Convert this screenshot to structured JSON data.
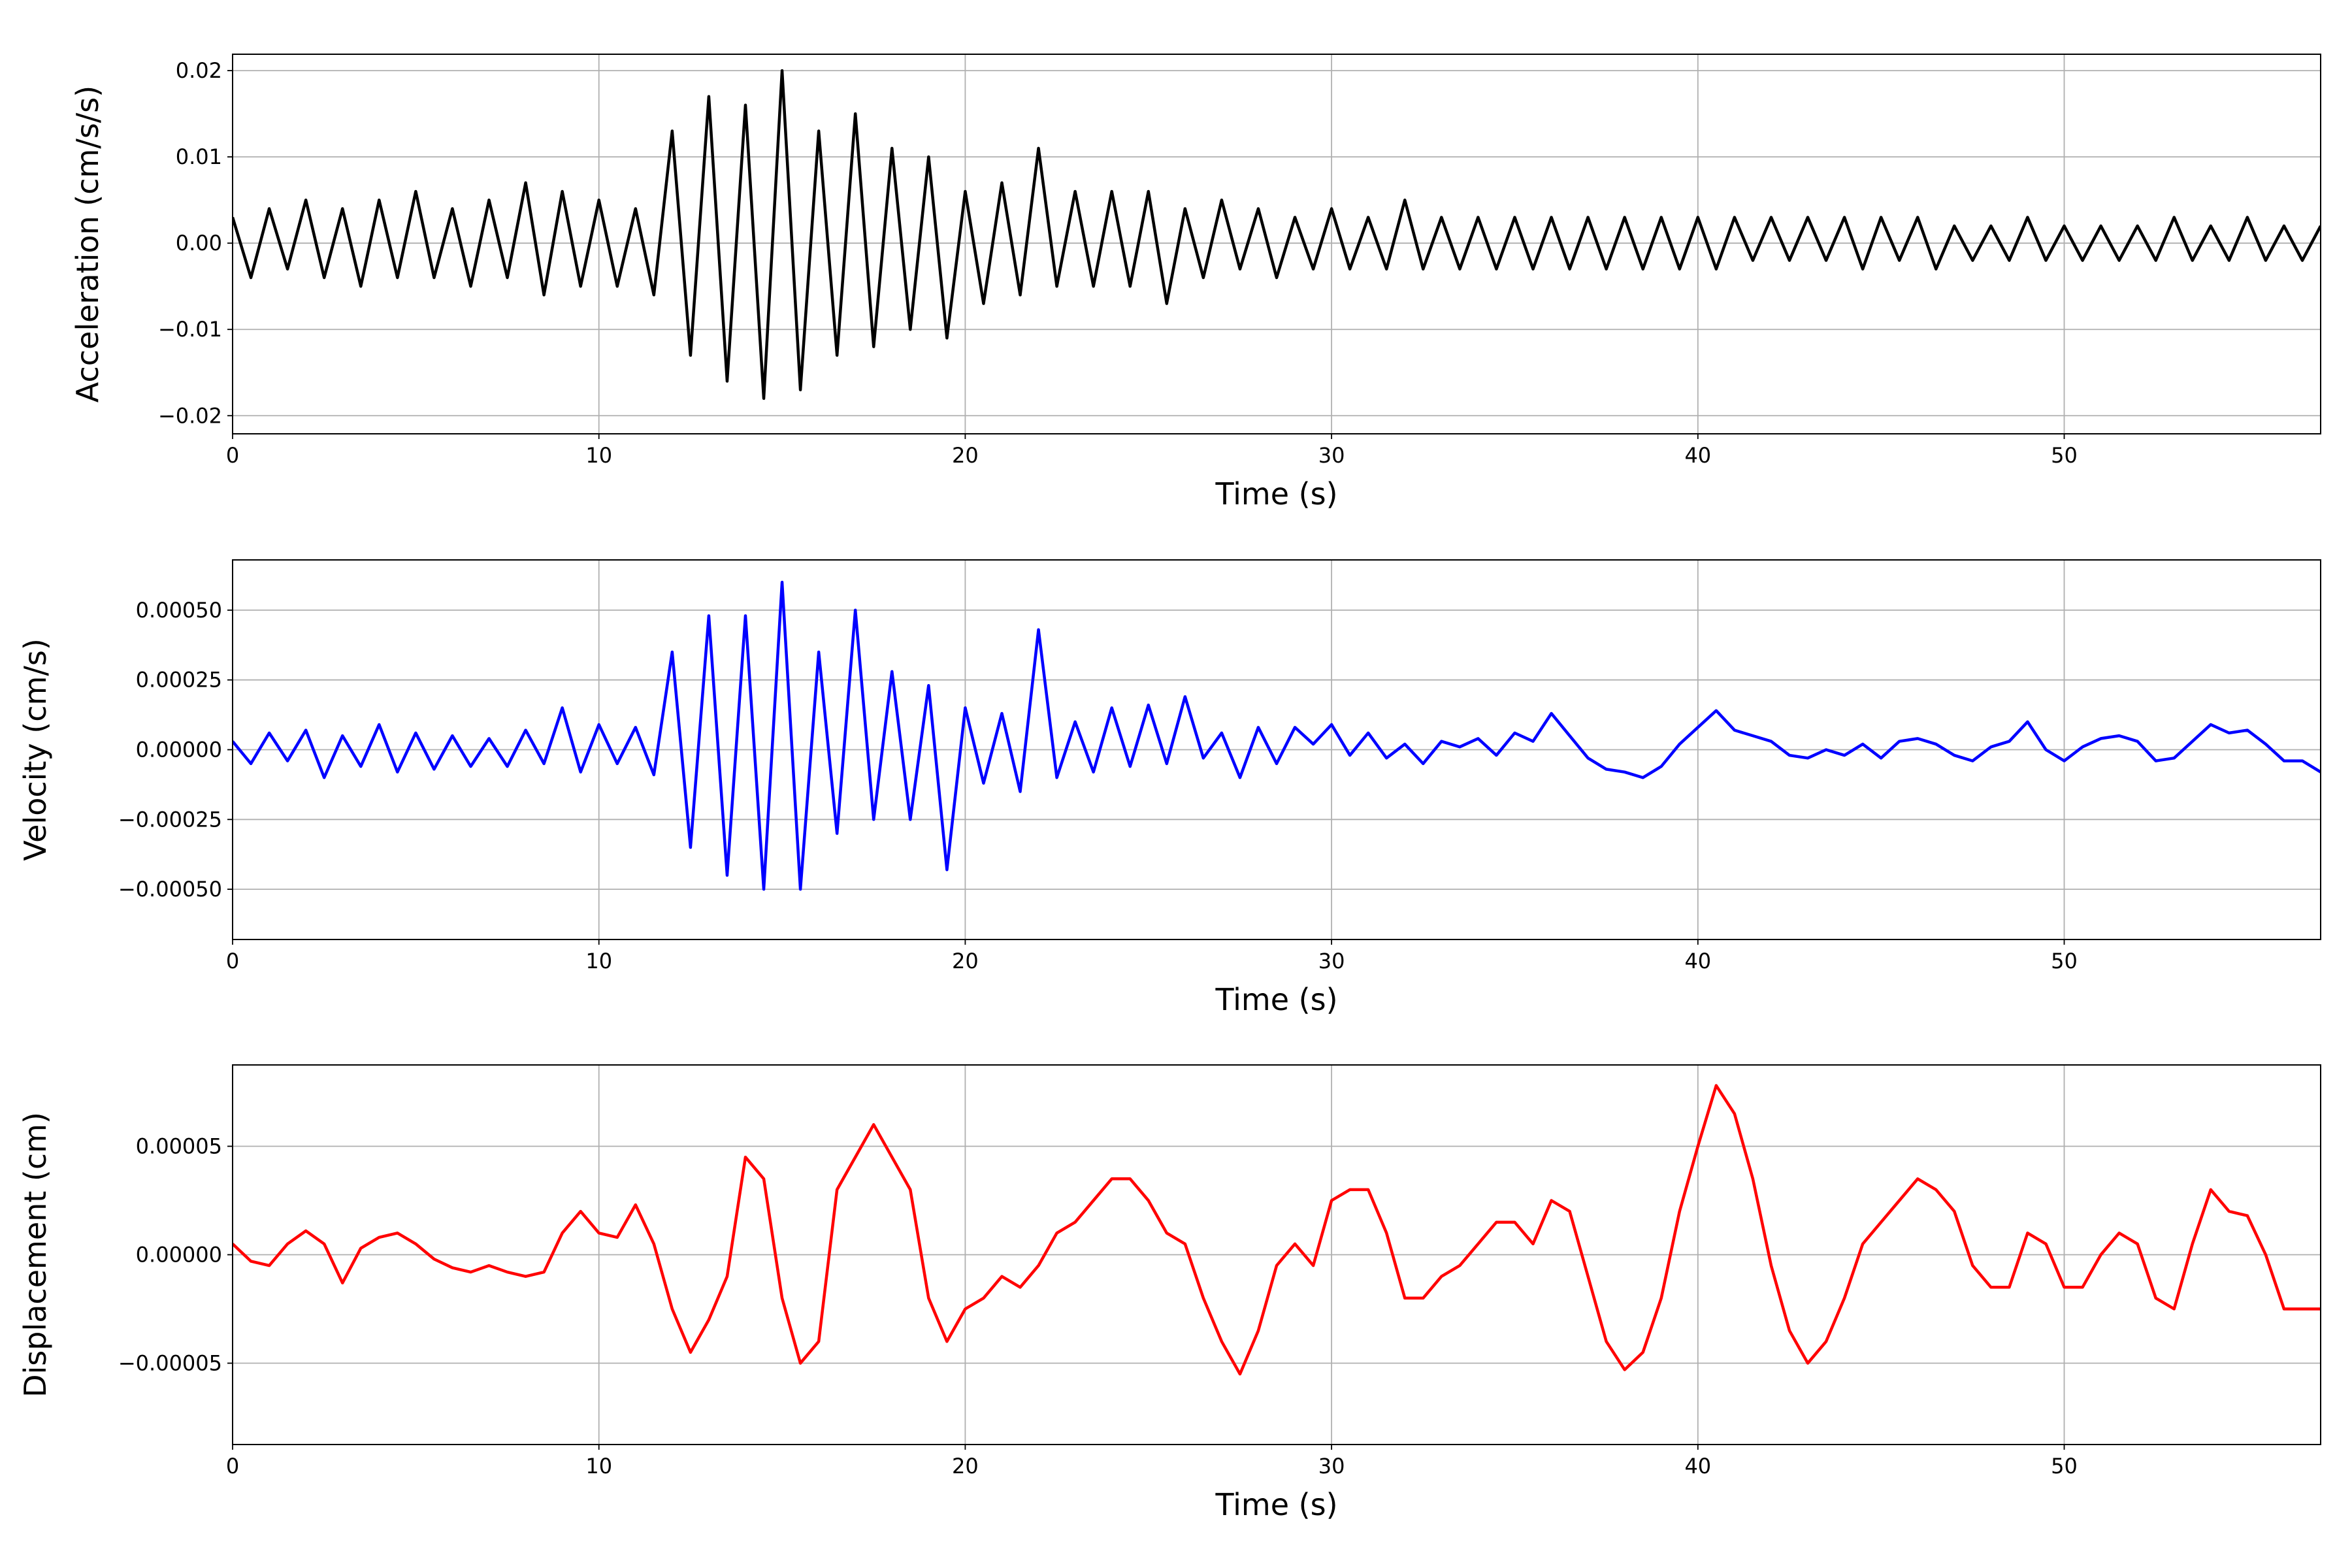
{
  "chart_data": [
    {
      "type": "line",
      "xlabel": "Time (s)",
      "ylabel": "Acceleration (cm/s/s)",
      "color": "#000000",
      "grid": true,
      "xlim": [
        0,
        57
      ],
      "xticks": [
        0,
        10,
        20,
        30,
        40,
        50
      ],
      "ylim": [
        -0.0221,
        0.0219
      ],
      "yticks": [
        {
          "value": -0.02,
          "label": "−0.02"
        },
        {
          "value": -0.01,
          "label": "−0.01"
        },
        {
          "value": 0,
          "label": "0.00"
        },
        {
          "value": 0.01,
          "label": "0.01"
        },
        {
          "value": 0.02,
          "label": "0.02"
        }
      ],
      "x": [
        0,
        0.5,
        1,
        1.5,
        2,
        2.5,
        3,
        3.5,
        4,
        4.5,
        5,
        5.5,
        6,
        6.5,
        7,
        7.5,
        8,
        8.5,
        9,
        9.5,
        10,
        10.5,
        11,
        11.5,
        12,
        12.5,
        13,
        13.5,
        14,
        14.5,
        15,
        15.5,
        16,
        16.5,
        17,
        17.5,
        18,
        18.5,
        19,
        19.5,
        20,
        20.5,
        21,
        21.5,
        22,
        22.5,
        23,
        23.5,
        24,
        24.5,
        25,
        25.5,
        26,
        26.5,
        27,
        27.5,
        28,
        28.5,
        29,
        29.5,
        30,
        30.5,
        31,
        31.5,
        32,
        32.5,
        33,
        33.5,
        34,
        34.5,
        35,
        35.5,
        36,
        36.5,
        37,
        37.5,
        38,
        38.5,
        39,
        39.5,
        40,
        40.5,
        41,
        41.5,
        42,
        42.5,
        43,
        43.5,
        44,
        44.5,
        45,
        45.5,
        46,
        46.5,
        47,
        47.5,
        48,
        48.5,
        49,
        49.5,
        50,
        50.5,
        51,
        51.5,
        52,
        52.5,
        53,
        53.5,
        54,
        54.5,
        55,
        55.5,
        56,
        56.5,
        57
      ],
      "values": [
        0.003,
        -0.004,
        0.004,
        -0.003,
        0.005,
        -0.004,
        0.004,
        -0.005,
        0.005,
        -0.004,
        0.006,
        -0.004,
        0.004,
        -0.005,
        0.005,
        -0.004,
        0.007,
        -0.006,
        0.006,
        -0.005,
        0.005,
        -0.005,
        0.004,
        -0.006,
        0.013,
        -0.013,
        0.017,
        -0.016,
        0.016,
        -0.018,
        0.02,
        -0.017,
        0.013,
        -0.013,
        0.015,
        -0.012,
        0.011,
        -0.01,
        0.01,
        -0.011,
        0.006,
        -0.007,
        0.007,
        -0.006,
        0.011,
        -0.005,
        0.006,
        -0.005,
        0.006,
        -0.005,
        0.006,
        -0.007,
        0.004,
        -0.004,
        0.005,
        -0.003,
        0.004,
        -0.004,
        0.003,
        -0.003,
        0.004,
        -0.003,
        0.003,
        -0.003,
        0.005,
        -0.003,
        0.003,
        -0.003,
        0.003,
        -0.003,
        0.003,
        -0.003,
        0.003,
        -0.003,
        0.003,
        -0.003,
        0.003,
        -0.003,
        0.003,
        -0.003,
        0.003,
        -0.003,
        0.003,
        -0.002,
        0.003,
        -0.002,
        0.003,
        -0.002,
        0.003,
        -0.003,
        0.003,
        -0.002,
        0.003,
        -0.003,
        0.002,
        -0.002,
        0.002,
        -0.002,
        0.003,
        -0.002,
        0.002,
        -0.002,
        0.002,
        -0.002,
        0.002,
        -0.002,
        0.003,
        -0.002,
        0.002,
        -0.002,
        0.003,
        -0.002,
        0.002,
        -0.002,
        0.002
      ]
    },
    {
      "type": "line",
      "xlabel": "Time (s)",
      "ylabel": "Velocity (cm/s)",
      "color": "#0000ff",
      "grid": true,
      "xlim": [
        0,
        57
      ],
      "xticks": [
        0,
        10,
        20,
        30,
        40,
        50
      ],
      "ylim": [
        -0.00068,
        0.00068
      ],
      "yticks": [
        {
          "value": -0.0005,
          "label": "−0.00050"
        },
        {
          "value": -0.00025,
          "label": "−0.00025"
        },
        {
          "value": 0,
          "label": "0.00000"
        },
        {
          "value": 0.00025,
          "label": "0.00025"
        },
        {
          "value": 0.0005,
          "label": "0.00050"
        }
      ],
      "x": [
        0,
        0.5,
        1,
        1.5,
        2,
        2.5,
        3,
        3.5,
        4,
        4.5,
        5,
        5.5,
        6,
        6.5,
        7,
        7.5,
        8,
        8.5,
        9,
        9.5,
        10,
        10.5,
        11,
        11.5,
        12,
        12.5,
        13,
        13.5,
        14,
        14.5,
        15,
        15.5,
        16,
        16.5,
        17,
        17.5,
        18,
        18.5,
        19,
        19.5,
        20,
        20.5,
        21,
        21.5,
        22,
        22.5,
        23,
        23.5,
        24,
        24.5,
        25,
        25.5,
        26,
        26.5,
        27,
        27.5,
        28,
        28.5,
        29,
        29.5,
        30,
        30.5,
        31,
        31.5,
        32,
        32.5,
        33,
        33.5,
        34,
        34.5,
        35,
        35.5,
        36,
        36.5,
        37,
        37.5,
        38,
        38.5,
        39,
        39.5,
        40,
        40.5,
        41,
        41.5,
        42,
        42.5,
        43,
        43.5,
        44,
        44.5,
        45,
        45.5,
        46,
        46.5,
        47,
        47.5,
        48,
        48.5,
        49,
        49.5,
        50,
        50.5,
        51,
        51.5,
        52,
        52.5,
        53,
        53.5,
        54,
        54.5,
        55,
        55.5,
        56,
        56.5,
        57
      ],
      "values": [
        3e-05,
        -5e-05,
        6e-05,
        -4e-05,
        7e-05,
        -0.0001,
        5e-05,
        -6e-05,
        9e-05,
        -8e-05,
        6e-05,
        -7e-05,
        5e-05,
        -6e-05,
        4e-05,
        -6e-05,
        7e-05,
        -5e-05,
        0.00015,
        -8e-05,
        9e-05,
        -5e-05,
        8e-05,
        -9e-05,
        0.00035,
        -0.00035,
        0.00048,
        -0.00045,
        0.00048,
        -0.0005,
        0.0006,
        -0.0005,
        0.00035,
        -0.0003,
        0.0005,
        -0.00025,
        0.00028,
        -0.00025,
        0.00023,
        -0.00043,
        0.00015,
        -0.00012,
        0.00013,
        -0.00015,
        0.00043,
        -0.0001,
        0.0001,
        -8e-05,
        0.00015,
        -6e-05,
        0.00016,
        -5e-05,
        0.00019,
        -3e-05,
        6e-05,
        -0.0001,
        8e-05,
        -5e-05,
        8e-05,
        2e-05,
        9e-05,
        -2e-05,
        6e-05,
        -3e-05,
        2e-05,
        -5e-05,
        3e-05,
        1e-05,
        4e-05,
        -2e-05,
        6e-05,
        3e-05,
        0.00013,
        5e-05,
        -3e-05,
        -7e-05,
        -8e-05,
        -0.0001,
        -6e-05,
        2e-05,
        8e-05,
        0.00014,
        7e-05,
        5e-05,
        3e-05,
        -2e-05,
        -3e-05,
        0,
        -2e-05,
        2e-05,
        -3e-05,
        3e-05,
        4e-05,
        2e-05,
        -2e-05,
        -4e-05,
        1e-05,
        3e-05,
        0.0001,
        0,
        -4e-05,
        1e-05,
        4e-05,
        5e-05,
        3e-05,
        -4e-05,
        -3e-05,
        3e-05,
        9e-05,
        6e-05,
        7e-05,
        2e-05,
        -4e-05,
        -4e-05,
        -8e-05
      ]
    },
    {
      "type": "line",
      "xlabel": "Time (s)",
      "ylabel": "Displacement (cm)",
      "color": "#ff0000",
      "grid": true,
      "xlim": [
        0,
        57
      ],
      "xticks": [
        0,
        10,
        20,
        30,
        40,
        50
      ],
      "ylim": [
        -8.75e-05,
        8.75e-05
      ],
      "yticks": [
        {
          "value": -5e-05,
          "label": "−0.00005"
        },
        {
          "value": 0,
          "label": "0.00000"
        },
        {
          "value": 5e-05,
          "label": "0.00005"
        }
      ],
      "x": [
        0,
        0.5,
        1,
        1.5,
        2,
        2.5,
        3,
        3.5,
        4,
        4.5,
        5,
        5.5,
        6,
        6.5,
        7,
        7.5,
        8,
        8.5,
        9,
        9.5,
        10,
        10.5,
        11,
        11.5,
        12,
        12.5,
        13,
        13.5,
        14,
        14.5,
        15,
        15.5,
        16,
        16.5,
        17,
        17.5,
        18,
        18.5,
        19,
        19.5,
        20,
        20.5,
        21,
        21.5,
        22,
        22.5,
        23,
        23.5,
        24,
        24.5,
        25,
        25.5,
        26,
        26.5,
        27,
        27.5,
        28,
        28.5,
        29,
        29.5,
        30,
        30.5,
        31,
        31.5,
        32,
        32.5,
        33,
        33.5,
        34,
        34.5,
        35,
        35.5,
        36,
        36.5,
        37,
        37.5,
        38,
        38.5,
        39,
        39.5,
        40,
        40.5,
        41,
        41.5,
        42,
        42.5,
        43,
        43.5,
        44,
        44.5,
        45,
        45.5,
        46,
        46.5,
        47,
        47.5,
        48,
        48.5,
        49,
        49.5,
        50,
        50.5,
        51,
        51.5,
        52,
        52.5,
        53,
        53.5,
        54,
        54.5,
        55,
        55.5,
        56,
        56.5,
        57
      ],
      "values": [
        5e-06,
        -3e-06,
        -5e-06,
        5e-06,
        1.1e-05,
        5e-06,
        -1.3e-05,
        3e-06,
        8e-06,
        1e-05,
        5e-06,
        -2e-06,
        -6e-06,
        -8e-06,
        -5e-06,
        -8e-06,
        -1e-05,
        -8e-06,
        1e-05,
        2e-05,
        1e-05,
        8e-06,
        2.3e-05,
        5e-06,
        -2.5e-05,
        -4.5e-05,
        -3e-05,
        -1e-05,
        4.5e-05,
        3.5e-05,
        -2e-05,
        -5e-05,
        -4e-05,
        3e-05,
        4.5e-05,
        6e-05,
        4.5e-05,
        3e-05,
        -2e-05,
        -4e-05,
        -2.5e-05,
        -2e-05,
        -1e-05,
        -1.5e-05,
        -5e-06,
        1e-05,
        1.5e-05,
        2.5e-05,
        3.5e-05,
        3.5e-05,
        2.5e-05,
        1e-05,
        5e-06,
        -2e-05,
        -4e-05,
        -5.5e-05,
        -3.5e-05,
        -5e-06,
        5e-06,
        -5e-06,
        2.5e-05,
        3e-05,
        3e-05,
        1e-05,
        -2e-05,
        -2e-05,
        -1e-05,
        -5e-06,
        5e-06,
        1.5e-05,
        1.5e-05,
        5e-06,
        2.5e-05,
        2e-05,
        -1e-05,
        -4e-05,
        -5.3e-05,
        -4.5e-05,
        -2e-05,
        2e-05,
        5e-05,
        7.8e-05,
        6.5e-05,
        3.5e-05,
        -5e-06,
        -3.5e-05,
        -5e-05,
        -4e-05,
        -2e-05,
        5e-06,
        1.5e-05,
        2.5e-05,
        3.5e-05,
        3e-05,
        2e-05,
        -5e-06,
        -1.5e-05,
        -1.5e-05,
        1e-05,
        5e-06,
        -1.5e-05,
        -1.5e-05,
        0,
        1e-05,
        5e-06,
        -2e-05,
        -2.5e-05,
        5e-06,
        3e-05,
        2e-05,
        1.8e-05,
        0,
        -2.5e-05,
        -2.5e-05,
        -2.5e-05
      ]
    }
  ]
}
